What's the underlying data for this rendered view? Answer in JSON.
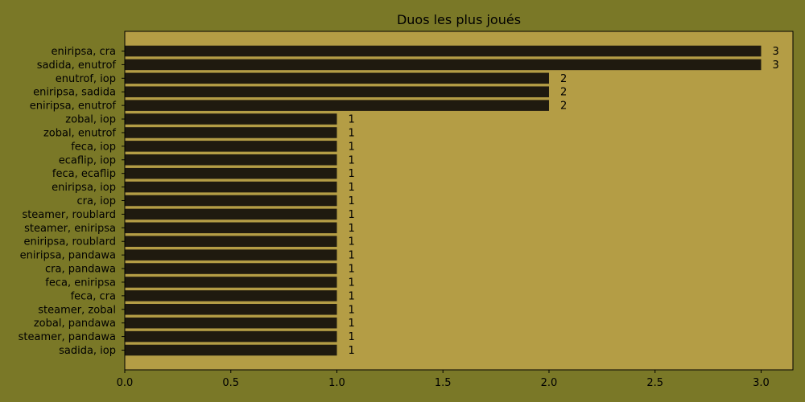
{
  "chart_data": {
    "type": "bar",
    "orientation": "horizontal",
    "title": "Duos les plus joués",
    "xlabel": "",
    "ylabel": "",
    "categories": [
      "eniripsa, cra",
      "sadida, enutrof",
      "enutrof, iop",
      "eniripsa, sadida",
      "eniripsa, enutrof",
      "zobal, iop",
      "zobal, enutrof",
      "feca, iop",
      "ecaflip, iop",
      "feca, ecaflip",
      "eniripsa, iop",
      "cra, iop",
      "steamer, roublard",
      "steamer, eniripsa",
      "eniripsa, roublard",
      "eniripsa, pandawa",
      "cra, pandawa",
      "feca, eniripsa",
      "feca, cra",
      "steamer, zobal",
      "zobal, pandawa",
      "steamer, pandawa",
      "sadida, iop"
    ],
    "values": [
      3,
      3,
      2,
      2,
      2,
      1,
      1,
      1,
      1,
      1,
      1,
      1,
      1,
      1,
      1,
      1,
      1,
      1,
      1,
      1,
      1,
      1,
      1
    ],
    "xlim": [
      0,
      3.15
    ],
    "xticks": [
      "0.0",
      "0.5",
      "1.0",
      "1.5",
      "2.0",
      "2.5",
      "3.0"
    ],
    "grid": false,
    "legend": "none",
    "colors": {
      "figure_background": "#7a7827",
      "plot_background": "#b49d45",
      "bar": "#1f1a0f",
      "text": "#000000"
    }
  }
}
